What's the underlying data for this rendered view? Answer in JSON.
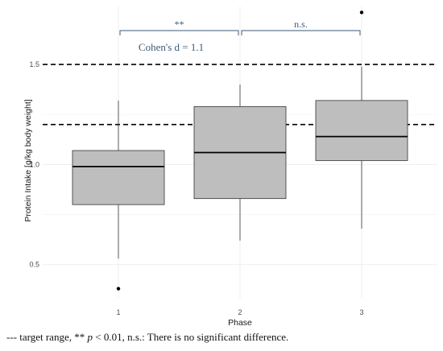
{
  "chart_data": {
    "type": "box",
    "xlabel": "Phase",
    "ylabel": "Protein Intake [g/kg body weight]",
    "categories": [
      "1",
      "2",
      "3"
    ],
    "y_ticks": [
      {
        "value": 0.5,
        "label": "0.5"
      },
      {
        "value": 1.0,
        "label": "1.0"
      },
      {
        "value": 1.5,
        "label": "1.5"
      }
    ],
    "ylim": [
      0.33,
      1.79
    ],
    "grid": true,
    "boxes": [
      {
        "category": "1",
        "whisker_low": 0.53,
        "q1": 0.8,
        "median": 0.99,
        "q3": 1.07,
        "whisker_high": 1.32,
        "outliers": [
          0.38
        ]
      },
      {
        "category": "2",
        "whisker_low": 0.62,
        "q1": 0.83,
        "median": 1.06,
        "q3": 1.29,
        "whisker_high": 1.4,
        "outliers": []
      },
      {
        "category": "3",
        "whisker_low": 0.68,
        "q1": 1.02,
        "median": 1.14,
        "q3": 1.32,
        "whisker_high": 1.49,
        "outliers": [
          1.76
        ]
      }
    ],
    "reference_lines": [
      1.2,
      1.5
    ],
    "annotations": [
      {
        "from": "1",
        "to": "2",
        "label": "**",
        "sublabel": "Cohen's d = 1.1"
      },
      {
        "from": "2",
        "to": "3",
        "label": "n.s.",
        "sublabel": ""
      }
    ]
  },
  "caption": {
    "dash_symbol": "---",
    "part1": " target range, ** ",
    "p_symbol": "p",
    "part2": " < 0.01, n.s.: There is no significant difference."
  }
}
